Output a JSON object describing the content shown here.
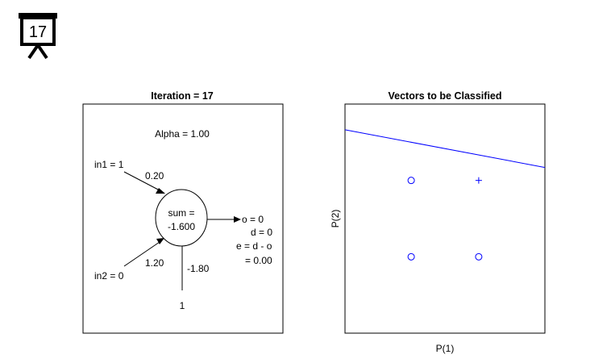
{
  "slide_badge": {
    "number": "17",
    "icon": "presentation-board-icon"
  },
  "network_panel": {
    "title": "Iteration = 17",
    "alpha_label": "Alpha = 1.00",
    "input1": {
      "label": "in1 = 1",
      "weight": "0.20"
    },
    "input2": {
      "label": "in2 = 0",
      "weight": "1.20"
    },
    "bias": {
      "label": "1",
      "weight": "-1.80"
    },
    "neuron": {
      "line1": "sum =",
      "line2": "-1.600"
    },
    "outputs": [
      "o = 0",
      "d = 0",
      "e = d - o",
      "= 0.00"
    ]
  },
  "classification_panel": {
    "title": "Vectors to be Classified",
    "xlabel": "P(1)",
    "ylabel": "P(2)"
  },
  "chart_data": {
    "type": "scatter",
    "title": "Vectors to be Classified",
    "xlabel": "P(1)",
    "ylabel": "P(2)",
    "xlim": [
      -0.98,
      1.98
    ],
    "ylim": [
      -1.0,
      2.0
    ],
    "grid": false,
    "points": [
      {
        "x": 0,
        "y": 0,
        "class": 0,
        "marker": "circle"
      },
      {
        "x": 1,
        "y": 0,
        "class": 0,
        "marker": "circle"
      },
      {
        "x": 0,
        "y": 1,
        "class": 0,
        "marker": "circle"
      },
      {
        "x": 1,
        "y": 1,
        "class": 1,
        "marker": "plus"
      }
    ],
    "decision_boundary": {
      "w1": 0.2,
      "w2": 1.2,
      "b": -1.8
    },
    "colors": {
      "points": "#0000ff",
      "boundary": "#0000ff"
    }
  }
}
